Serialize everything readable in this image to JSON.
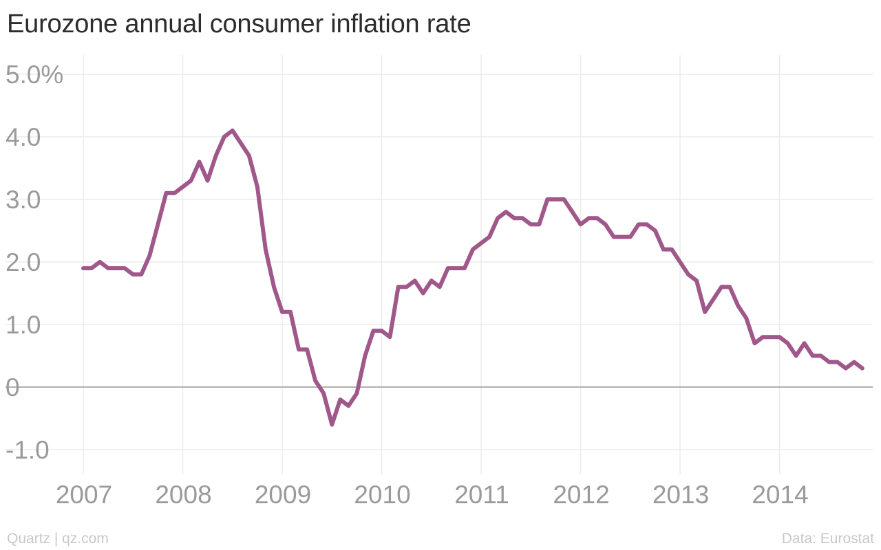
{
  "header": {
    "title": "Eurozone annual consumer inflation rate"
  },
  "footer": {
    "credit": "Quartz | qz.com",
    "source": "Data: Eurostat"
  },
  "colors": {
    "line": "#a0578a",
    "grid": "#ebebeb",
    "zero_line": "#b0b0b0",
    "tick_text": "#9a9a9a"
  },
  "chart_data": {
    "type": "line",
    "title": "Eurozone annual consumer inflation rate",
    "xlabel": "",
    "ylabel": "",
    "ylim": [
      -1.0,
      5.0
    ],
    "grid": true,
    "y_ticks": [
      {
        "value": 5.0,
        "label": "5.0%"
      },
      {
        "value": 4.0,
        "label": "4.0"
      },
      {
        "value": 3.0,
        "label": "3.0"
      },
      {
        "value": 2.0,
        "label": "2.0"
      },
      {
        "value": 1.0,
        "label": "1.0"
      },
      {
        "value": 0,
        "label": "0"
      },
      {
        "value": -1.0,
        "label": "-1.0"
      }
    ],
    "x_ticks": [
      "2007",
      "2008",
      "2009",
      "2010",
      "2011",
      "2012",
      "2013",
      "2014"
    ],
    "x_start": "2007-01",
    "series": [
      {
        "values": [
          1.9,
          1.9,
          2.0,
          1.9,
          1.9,
          1.9,
          1.8,
          1.8,
          2.1,
          2.6,
          3.1,
          3.1,
          3.2,
          3.3,
          3.6,
          3.3,
          3.7,
          4.0,
          4.1,
          3.9,
          3.7,
          3.2,
          2.2,
          1.6,
          1.2,
          1.2,
          0.6,
          0.6,
          0.1,
          -0.1,
          -0.6,
          -0.2,
          -0.3,
          -0.1,
          0.5,
          0.9,
          0.9,
          0.8,
          1.6,
          1.6,
          1.7,
          1.5,
          1.7,
          1.6,
          1.9,
          1.9,
          1.9,
          2.2,
          2.3,
          2.4,
          2.7,
          2.8,
          2.7,
          2.7,
          2.6,
          2.6,
          3.0,
          3.0,
          3.0,
          2.8,
          2.6,
          2.7,
          2.7,
          2.6,
          2.4,
          2.4,
          2.4,
          2.6,
          2.6,
          2.5,
          2.2,
          2.2,
          2.0,
          1.8,
          1.7,
          1.2,
          1.4,
          1.6,
          1.6,
          1.3,
          1.1,
          0.7,
          0.8,
          0.8,
          0.8,
          0.7,
          0.5,
          0.7,
          0.5,
          0.5,
          0.4,
          0.4,
          0.3,
          0.4,
          0.3
        ]
      }
    ]
  }
}
